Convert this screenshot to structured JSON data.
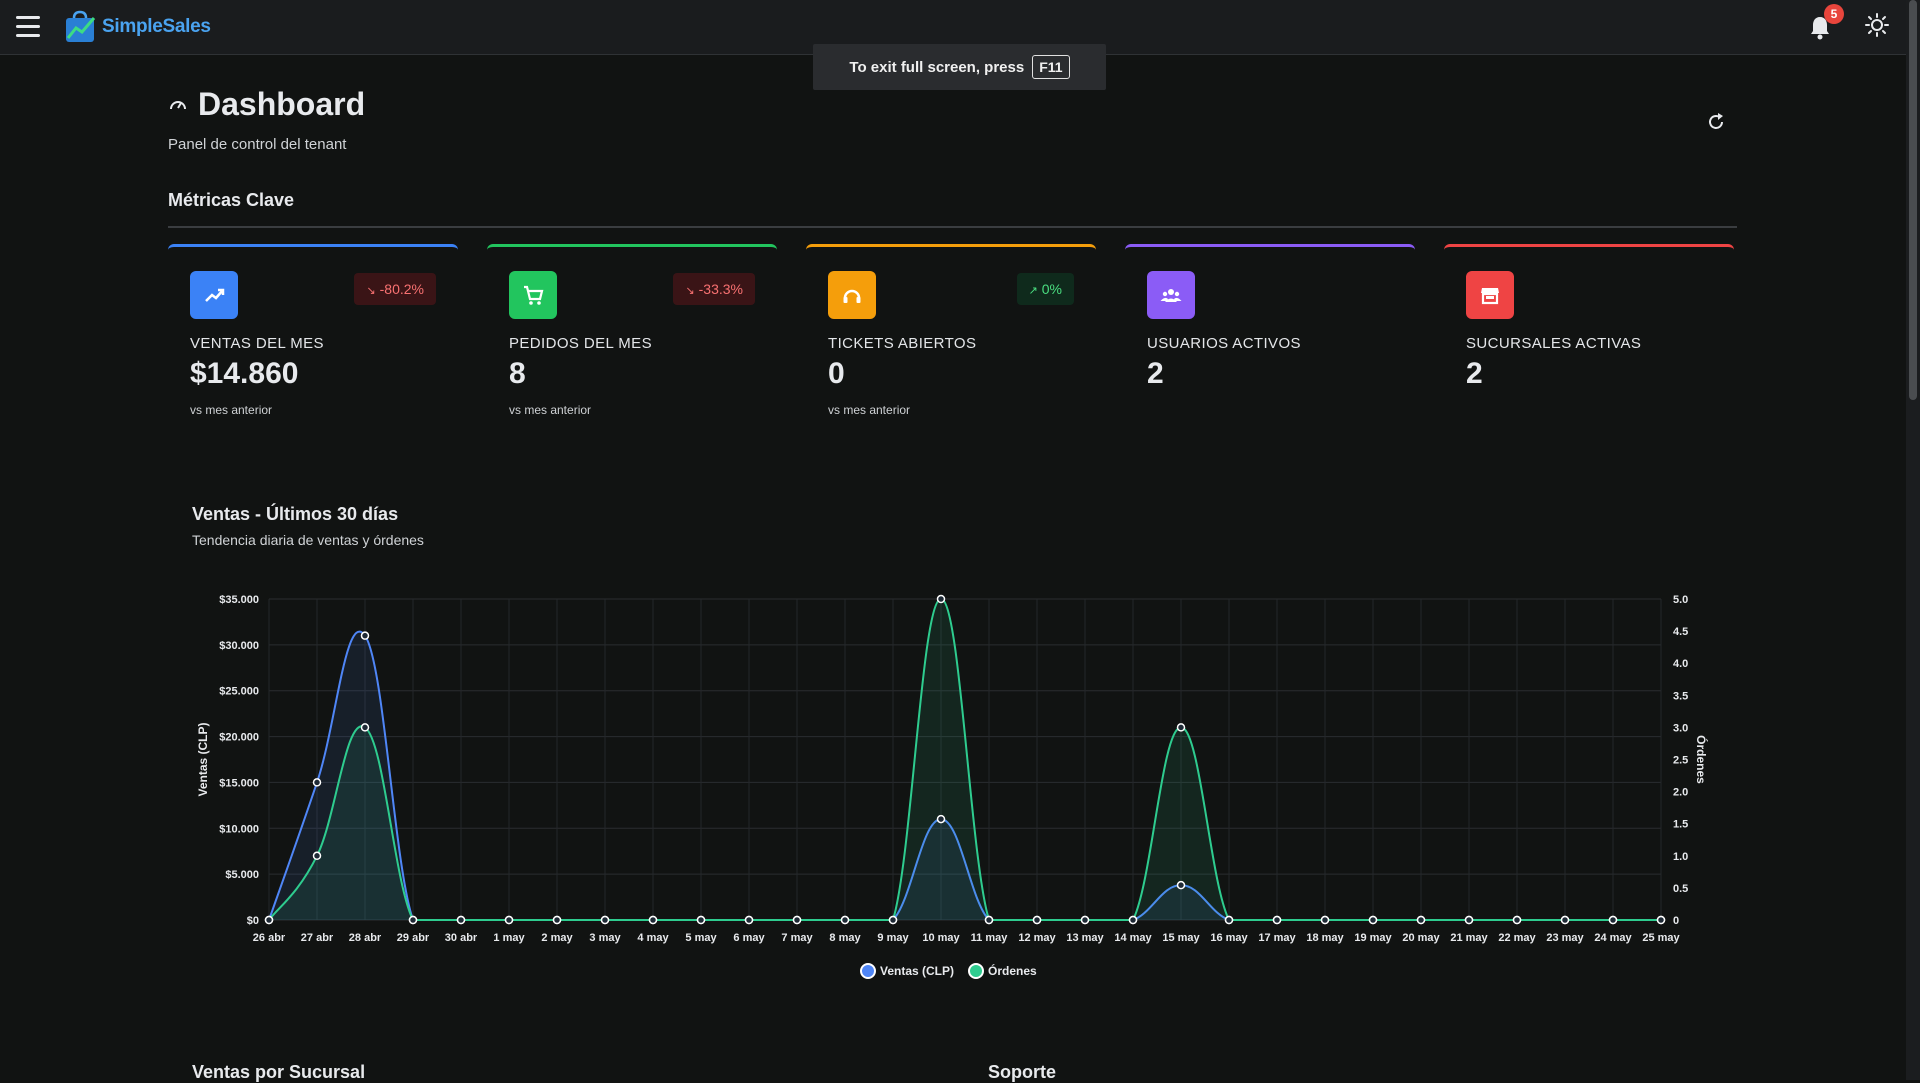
{
  "app": {
    "name": "SimpleSales",
    "notifications_count": "5"
  },
  "fullscreen_notice": {
    "text": "To exit full screen, press",
    "key": "F11"
  },
  "header": {
    "title": "Dashboard",
    "subtitle": "Panel de control del tenant"
  },
  "section": {
    "title": "Métricas Clave"
  },
  "cards": [
    {
      "label": "VENTAS DEL MES",
      "value": "$14.860",
      "change": "-80.2%",
      "sub": "vs mes anterior",
      "color": "#3b82f6",
      "icon": "trending-up-icon",
      "trend": "down"
    },
    {
      "label": "PEDIDOS DEL MES",
      "value": "8",
      "change": "-33.3%",
      "sub": "vs mes anterior",
      "color": "#22c55e",
      "icon": "cart-icon",
      "trend": "down"
    },
    {
      "label": "TICKETS ABIERTOS",
      "value": "0",
      "change": "0%",
      "sub": "vs mes anterior",
      "color": "#f59e0b",
      "icon": "support-icon",
      "trend": "up"
    },
    {
      "label": "USUARIOS ACTIVOS",
      "value": "2",
      "change": "",
      "sub": "",
      "color": "#8b5cf6",
      "icon": "users-icon",
      "trend": ""
    },
    {
      "label": "SUCURSALES ACTIVAS",
      "value": "2",
      "change": "",
      "sub": "",
      "color": "#ef4444",
      "icon": "store-icon",
      "trend": ""
    }
  ],
  "chart_section": {
    "title": "Ventas - Últimos 30 días",
    "subtitle": "Tendencia diaria de ventas y órdenes"
  },
  "chart_data": {
    "type": "line",
    "categories": [
      "26 abr",
      "27 abr",
      "28 abr",
      "29 abr",
      "30 abr",
      "1 may",
      "2 may",
      "3 may",
      "4 may",
      "5 may",
      "6 may",
      "7 may",
      "8 may",
      "9 may",
      "10 may",
      "11 may",
      "12 may",
      "13 may",
      "14 may",
      "15 may",
      "16 may",
      "17 may",
      "18 may",
      "19 may",
      "20 may",
      "21 may",
      "22 may",
      "23 may",
      "24 may",
      "25 may"
    ],
    "series": [
      {
        "name": "Ventas (CLP)",
        "axis": "left",
        "color": "#4f86f7",
        "values": [
          0,
          15000,
          31000,
          0,
          0,
          0,
          0,
          0,
          0,
          0,
          0,
          0,
          0,
          0,
          11000,
          0,
          0,
          0,
          0,
          3800,
          0,
          0,
          0,
          0,
          0,
          0,
          0,
          0,
          0,
          0
        ]
      },
      {
        "name": "Órdenes",
        "axis": "right",
        "color": "#2ecc8f",
        "values": [
          0,
          1,
          3,
          0,
          0,
          0,
          0,
          0,
          0,
          0,
          0,
          0,
          0,
          0,
          5,
          0,
          0,
          0,
          0,
          3,
          0,
          0,
          0,
          0,
          0,
          0,
          0,
          0,
          0,
          0
        ]
      }
    ],
    "ylabel": "Ventas (CLP)",
    "ylabel_right": "Órdenes",
    "ylim": [
      0,
      35000
    ],
    "ylim_right": [
      0,
      5
    ],
    "yticks_left": [
      "$0",
      "$5.000",
      "$10.000",
      "$15.000",
      "$20.000",
      "$25.000",
      "$30.000",
      "$35.000"
    ],
    "yticks_right": [
      "0",
      "0.5",
      "1.0",
      "1.5",
      "2.0",
      "2.5",
      "3.0",
      "3.5",
      "4.0",
      "4.5",
      "5.0"
    ],
    "grid": true,
    "legend": "bottom-center"
  },
  "bottom": {
    "left_title": "Ventas por Sucursal",
    "right_title": "Soporte"
  }
}
